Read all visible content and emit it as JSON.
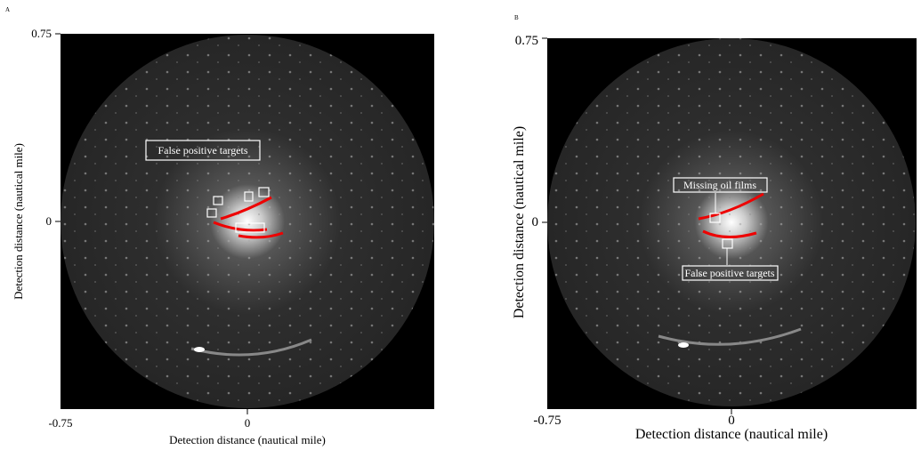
{
  "panels": [
    {
      "label": "A",
      "ylabel": "Detection distance (nautical mile)",
      "xlabel": "Detection distance (nautical mile)",
      "yticks": [
        "0.75",
        "0"
      ],
      "xticks": [
        "-0.75",
        "0"
      ],
      "annotations": [
        "False positive targets"
      ]
    },
    {
      "label": "B",
      "ylabel": "Detection distance (nautical mile)",
      "xlabel": "Detection distance (nautical mile)",
      "yticks": [
        "0.75",
        "0"
      ],
      "xticks": [
        "-0.75",
        "0"
      ],
      "annotations": [
        "Missing oil films",
        "False positive targets"
      ]
    }
  ]
}
